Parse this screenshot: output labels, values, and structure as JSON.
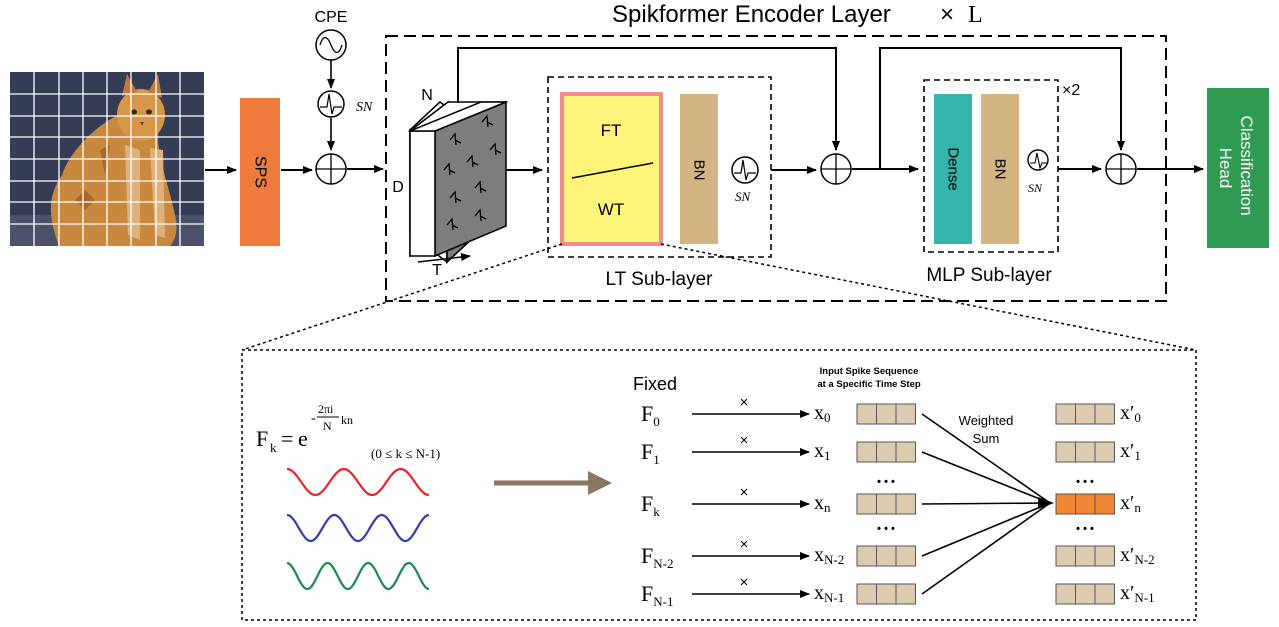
{
  "encoder": {
    "title_main": "Spikformer Encoder Layer",
    "title_times": "×",
    "title_L": "L"
  },
  "input": {
    "image": "tabby-cat-photo-with-patch-grid"
  },
  "sps": {
    "label": "SPS"
  },
  "cpe": {
    "label": "CPE"
  },
  "sn_label": "SN",
  "tensor": {
    "n_label": "N",
    "d_label": "D",
    "t_label": "T"
  },
  "lt": {
    "ft": "FT",
    "wt": "WT",
    "bn": "BN",
    "caption": "LT Sub-layer"
  },
  "mlp": {
    "dense": "Dense",
    "bn": "BN",
    "repeat": "×2",
    "caption": "MLP Sub-layer"
  },
  "head": {
    "line1": "Classification",
    "line2": "Head"
  },
  "formula": {
    "F": "F",
    "k": "k",
    "eq": "=",
    "e": "e",
    "exp_neg": "-",
    "exp_num": "2πi",
    "exp_den": "N",
    "exp_kn": "kn",
    "range": "(0 ≤ k ≤ N-1)"
  },
  "waves": {
    "colors": [
      "#e8232a",
      "#2e3ea8",
      "#1a8a4a"
    ]
  },
  "detail": {
    "fixed": "Fixed",
    "input_caption_1": "Input Spike Sequence",
    "input_caption_2": "at a Specific Time Step",
    "weighted_1": "Weighted",
    "weighted_2": "Sum",
    "times": "×",
    "dots": "• • •",
    "F_main": "F",
    "x_main": "x",
    "xp_main": "x′",
    "rows": [
      {
        "f_sub": "0",
        "x_sub": "0",
        "xp_sub": "0"
      },
      {
        "f_sub": "1",
        "x_sub": "1",
        "xp_sub": "1"
      },
      {
        "f_sub": "k",
        "x_sub": "n",
        "xp_sub": "n"
      },
      {
        "f_sub": "N-2",
        "x_sub": "N-2",
        "xp_sub": "N-2"
      },
      {
        "f_sub": "N-1",
        "x_sub": "N-1",
        "xp_sub": "N-1"
      }
    ]
  },
  "colors": {
    "sps": "#ef7a3e",
    "ft_fill": "#fdf57a",
    "ft_border": "#f08c8c",
    "bn": "#d4b483",
    "dense": "#35b5a9",
    "head": "#2f9a52",
    "head_text": "#ffffff",
    "cell": "#dccbb0",
    "cell_highlight": "#ef8535",
    "big_arrow": "#8a7760"
  }
}
